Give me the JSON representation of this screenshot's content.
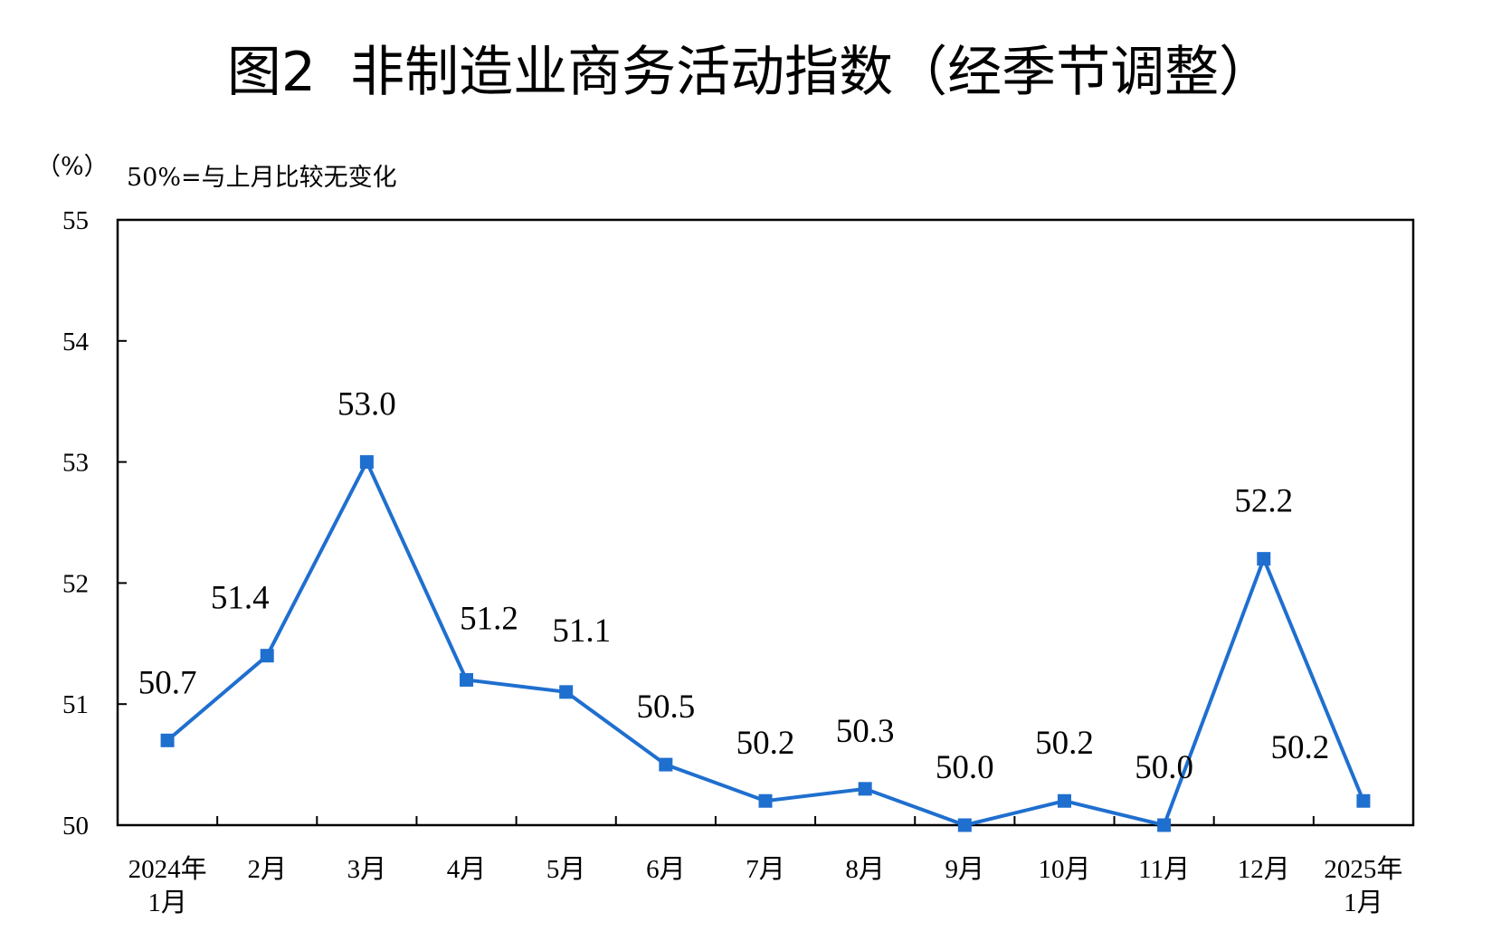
{
  "title": "图2  非制造业商务活动指数（经季节调整）",
  "unit_label": "（%）",
  "baseline_note": "50%=与上月比较无变化",
  "colors": {
    "series": "#1f6fcf",
    "axis": "#000000"
  },
  "chart_data": {
    "type": "line",
    "categories": [
      [
        "2024年",
        "1月"
      ],
      [
        "2月"
      ],
      [
        "3月"
      ],
      [
        "4月"
      ],
      [
        "5月"
      ],
      [
        "6月"
      ],
      [
        "7月"
      ],
      [
        "8月"
      ],
      [
        "9月"
      ],
      [
        "10月"
      ],
      [
        "11月"
      ],
      [
        "12月"
      ],
      [
        "2025年",
        "1月"
      ]
    ],
    "values": [
      50.7,
      51.4,
      53.0,
      51.2,
      51.1,
      50.5,
      50.2,
      50.3,
      50.0,
      50.2,
      50.0,
      52.2,
      50.2
    ],
    "value_labels": [
      "50.7",
      "51.4",
      "53.0",
      "51.2",
      "51.1",
      "50.5",
      "50.2",
      "50.3",
      "50.0",
      "50.2",
      "50.0",
      "52.2",
      "50.2"
    ],
    "ylim": [
      50,
      55
    ],
    "yticks": [
      "50",
      "51",
      "52",
      "53",
      "54",
      "55"
    ],
    "marker": "square",
    "grid": false,
    "legend": "none"
  }
}
